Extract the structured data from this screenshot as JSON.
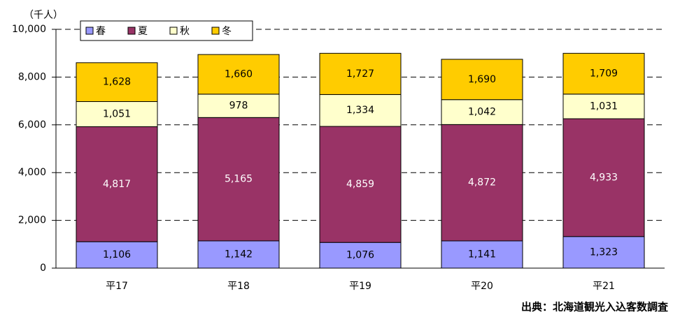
{
  "chart_data": {
    "type": "bar",
    "stacked": true,
    "y_label": "（千人）",
    "source": "出典：北海道観光入込客数調査",
    "categories": [
      "平17",
      "平18",
      "平19",
      "平20",
      "平21"
    ],
    "series": [
      {
        "name": "春",
        "color": "#9999ff",
        "values": [
          1106,
          1142,
          1076,
          1141,
          1323
        ],
        "value_labels": [
          "1,106",
          "1,142",
          "1,076",
          "1,141",
          "1,323"
        ]
      },
      {
        "name": "夏",
        "color": "#993366",
        "values": [
          4817,
          5165,
          4859,
          4872,
          4933
        ],
        "value_labels": [
          "4,817",
          "5,165",
          "4,859",
          "4,872",
          "4,933"
        ]
      },
      {
        "name": "秋",
        "color": "#ffffcc",
        "values": [
          1051,
          978,
          1334,
          1042,
          1031
        ],
        "value_labels": [
          "1,051",
          "978",
          "1,334",
          "1,042",
          "1,031"
        ]
      },
      {
        "name": "冬",
        "color": "#ffcc00",
        "values": [
          1628,
          1660,
          1727,
          1690,
          1709
        ],
        "value_labels": [
          "1,628",
          "1,660",
          "1,727",
          "1,690",
          "1,709"
        ]
      }
    ],
    "ylim": [
      0,
      10000
    ],
    "yticks": [
      0,
      {
        "value": 2000,
        "label": "2,000"
      },
      {
        "value": 4000,
        "label": "4,000"
      },
      {
        "value": 6000,
        "label": "6,000"
      },
      {
        "value": 8000,
        "label": "8,000"
      },
      {
        "value": 10000,
        "label": "10,000"
      }
    ],
    "grid": true,
    "legend": "top-left"
  }
}
